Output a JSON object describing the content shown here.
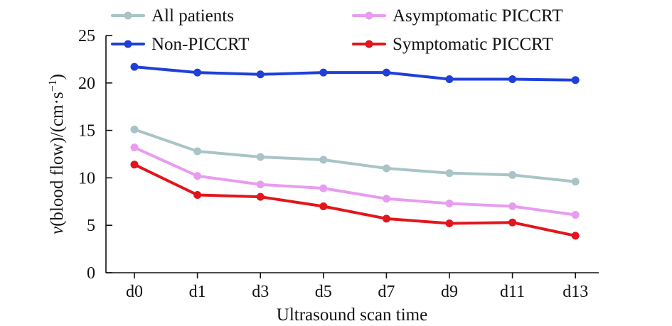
{
  "chart_data": {
    "type": "line",
    "title": "",
    "xlabel": "Ultrasound scan time",
    "ylabel": "v(blood flow)/(cm·s−1)",
    "ylabel_parts": {
      "var": "v",
      "mid": "(blood flow)/(cm·s",
      "sup": "−1",
      "end": ")"
    },
    "categories": [
      "d0",
      "d1",
      "d3",
      "d5",
      "d7",
      "d9",
      "d11",
      "d13"
    ],
    "yticks": [
      "0",
      "5",
      "10",
      "15",
      "20",
      "25"
    ],
    "ylim": [
      0,
      25
    ],
    "grid": false,
    "legend": "top",
    "series": [
      {
        "name": "All patients",
        "color": "#a8c4c6",
        "values": [
          15.1,
          12.8,
          12.2,
          11.9,
          11.0,
          10.5,
          10.3,
          9.6
        ]
      },
      {
        "name": "Non-PICCRT",
        "color": "#1f3fd8",
        "values": [
          21.7,
          21.1,
          20.9,
          21.1,
          21.1,
          20.4,
          20.4,
          20.3
        ]
      },
      {
        "name": "Asymptomatic PICCRT",
        "color": "#e89cf0",
        "values": [
          13.2,
          10.2,
          9.3,
          8.9,
          7.8,
          7.3,
          7.0,
          6.1
        ]
      },
      {
        "name": "Symptomatic PICCRT",
        "color": "#e3151c",
        "values": [
          11.4,
          8.2,
          8.0,
          7.0,
          5.7,
          5.2,
          5.3,
          3.9
        ]
      }
    ]
  }
}
